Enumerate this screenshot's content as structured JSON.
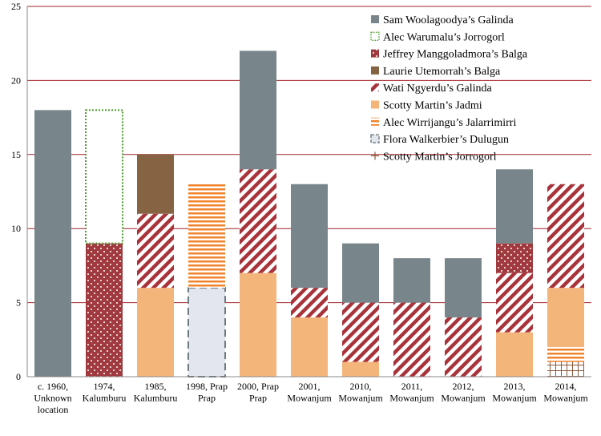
{
  "chart_data": {
    "type": "bar",
    "stacked": true,
    "title": "",
    "xlabel": "",
    "ylabel": "",
    "ylim": [
      0,
      25
    ],
    "yticks": [
      0,
      5,
      10,
      15,
      20,
      25
    ],
    "grid": true,
    "legend_position": "top-right",
    "categories": [
      [
        "c. 1960,",
        "Unknown",
        "location"
      ],
      [
        "1974,",
        "Kalumburu"
      ],
      [
        "1985,",
        "Kalumburu"
      ],
      [
        "1998, Prap",
        "Prap"
      ],
      [
        "2000, Prap",
        "Prap"
      ],
      [
        "2001,",
        "Mowanjum"
      ],
      [
        "2010,",
        "Mowanjum"
      ],
      [
        "2011,",
        "Mowanjum"
      ],
      [
        "2012,",
        "Mowanjum"
      ],
      [
        "2013,",
        "Mowanjum"
      ],
      [
        "2014,",
        "Mowanjum"
      ]
    ],
    "series": [
      {
        "name": "Scotty Martin’s Jorrogorl",
        "pattern": "grid",
        "color": "#8b5a3c",
        "values": [
          0,
          0,
          0,
          0,
          0,
          0,
          0,
          0,
          0,
          0,
          1
        ]
      },
      {
        "name": "Flora Walkerbier’s Dulugun",
        "pattern": "dashed-box",
        "color": "#6b7a82",
        "fill": "#e3e6ec",
        "values": [
          0,
          0,
          0,
          6,
          0,
          0,
          0,
          0,
          0,
          0,
          0
        ]
      },
      {
        "name": "Alec Wirrijangu’s Jalarrimirri",
        "pattern": "hstripes",
        "color": "#f0832b",
        "values": [
          0,
          0,
          0,
          7,
          0,
          0,
          0,
          0,
          0,
          0,
          1
        ]
      },
      {
        "name": "Scotty Martin’s Jadmi",
        "pattern": "solid",
        "color": "#f4b57a",
        "values": [
          0,
          0,
          6,
          0,
          7,
          4,
          1,
          0,
          0,
          3,
          4
        ]
      },
      {
        "name": "Wati Ngyerdu’s Galinda",
        "pattern": "diagonal",
        "color": "#a8333a",
        "values": [
          0,
          0,
          5,
          0,
          7,
          2,
          4,
          5,
          4,
          4,
          7
        ]
      },
      {
        "name": "Laurie Utemorrah’s Balga",
        "pattern": "solid",
        "color": "#866443",
        "values": [
          0,
          0,
          4,
          0,
          0,
          0,
          0,
          0,
          0,
          0,
          0
        ]
      },
      {
        "name": "Jeffrey Manggoladmora’s Balga",
        "pattern": "dots",
        "color": "#a03a3e",
        "values": [
          0,
          9,
          0,
          0,
          0,
          0,
          0,
          0,
          0,
          2,
          0
        ]
      },
      {
        "name": "Alec Warumalu’s Jorrogorl",
        "pattern": "dotted-box",
        "color": "#4f9a2f",
        "values": [
          0,
          9,
          0,
          0,
          0,
          0,
          0,
          0,
          0,
          0,
          0
        ]
      },
      {
        "name": "Sam Woolagoodya’s Galinda",
        "pattern": "solid",
        "color": "#78858a",
        "values": [
          18,
          0,
          0,
          0,
          8,
          7,
          4,
          3,
          4,
          5,
          0
        ]
      }
    ]
  }
}
